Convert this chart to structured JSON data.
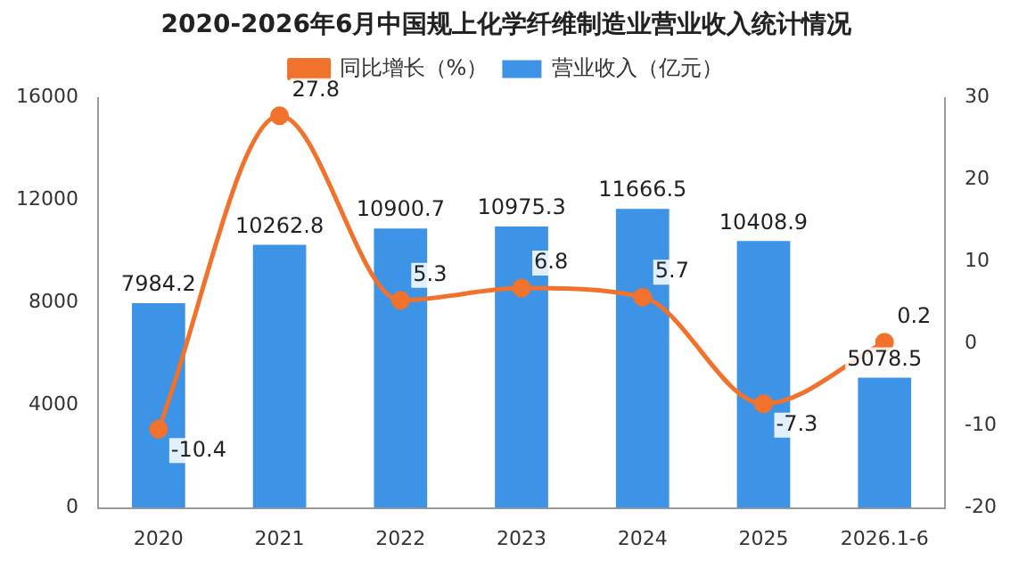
{
  "chart_data": {
    "type": "bar",
    "title": "2020-2026年6月中国规上化学纤维制造业营业收入统计情况",
    "categories": [
      "2020",
      "2021",
      "2022",
      "2023",
      "2024",
      "2025",
      "2026.1-6"
    ],
    "series": [
      {
        "name": "营业收入（亿元）",
        "color": "#3d93e6",
        "values": [
          7984.2,
          10262.8,
          10900.7,
          10975.3,
          11666.5,
          10408.9,
          5078.5
        ]
      },
      {
        "name": "同比增长（%）",
        "type": "line",
        "axis": "y2",
        "color": "#f0722c",
        "values": [
          -10.4,
          27.8,
          5.3,
          6.8,
          5.7,
          -7.3,
          0.2
        ]
      }
    ],
    "ylim": [
      0,
      16000
    ],
    "yticks": [
      0,
      4000,
      8000,
      12000,
      16000
    ],
    "y2lim": [
      -20,
      30
    ],
    "y2ticks": [
      -20,
      -10,
      0,
      10,
      20,
      30
    ],
    "grid": false,
    "legend": "top",
    "marker": "circle",
    "line_style": "solid",
    "data_labels": true
  }
}
